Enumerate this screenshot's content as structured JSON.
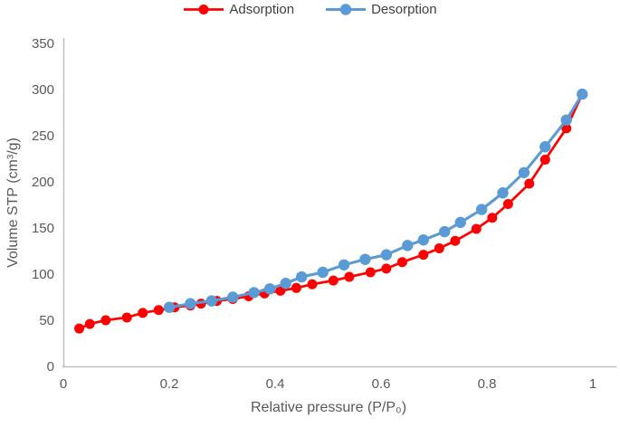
{
  "chart_data": {
    "type": "line",
    "xlabel": "Relative pressure (P/P₀)",
    "ylabel": "Volume STP (cm³/g)",
    "xlim": [
      0,
      1
    ],
    "ylim": [
      0,
      350
    ],
    "x_ticks": [
      "0",
      "0.2",
      "0.4",
      "0.6",
      "0.8",
      "1"
    ],
    "x_tick_values": [
      0,
      0.2,
      0.4,
      0.6,
      0.8,
      1
    ],
    "y_ticks": [
      "0",
      "50",
      "100",
      "150",
      "200",
      "250",
      "300",
      "350"
    ],
    "y_tick_values": [
      0,
      50,
      100,
      150,
      200,
      250,
      300,
      350
    ],
    "grid": false,
    "legend_position": "top-center",
    "series": [
      {
        "name": "Adsorption",
        "color": "#FF0000",
        "marker": "circle",
        "x": [
          0.03,
          0.05,
          0.08,
          0.12,
          0.15,
          0.18,
          0.21,
          0.24,
          0.26,
          0.29,
          0.32,
          0.35,
          0.38,
          0.41,
          0.44,
          0.47,
          0.51,
          0.54,
          0.58,
          0.61,
          0.64,
          0.68,
          0.71,
          0.74,
          0.78,
          0.81,
          0.84,
          0.88,
          0.91,
          0.95,
          0.98
        ],
        "y": [
          41,
          46,
          50,
          53,
          58,
          61,
          64,
          66,
          68,
          71,
          73,
          76,
          79,
          82,
          85,
          89,
          93,
          97,
          102,
          106,
          113,
          121,
          128,
          136,
          149,
          161,
          176,
          198,
          224,
          258,
          295
        ]
      },
      {
        "name": "Desorption",
        "color": "#5B9BD5",
        "marker": "circle",
        "x": [
          0.2,
          0.24,
          0.28,
          0.32,
          0.36,
          0.39,
          0.42,
          0.45,
          0.49,
          0.53,
          0.57,
          0.61,
          0.65,
          0.68,
          0.72,
          0.75,
          0.79,
          0.83,
          0.87,
          0.91,
          0.95,
          0.98
        ],
        "y": [
          64,
          68,
          71,
          75,
          80,
          84,
          90,
          97,
          102,
          110,
          116,
          121,
          131,
          137,
          146,
          156,
          170,
          188,
          210,
          238,
          267,
          295
        ]
      }
    ]
  },
  "colors": {
    "adsorption": "#FF0000",
    "desorption": "#5B9BD5",
    "axis_line": "#BFBFBF",
    "tick_label": "#595959",
    "axis_title": "#595959",
    "legend_text": "#3F3F3F",
    "background": "#FFFFFF"
  }
}
